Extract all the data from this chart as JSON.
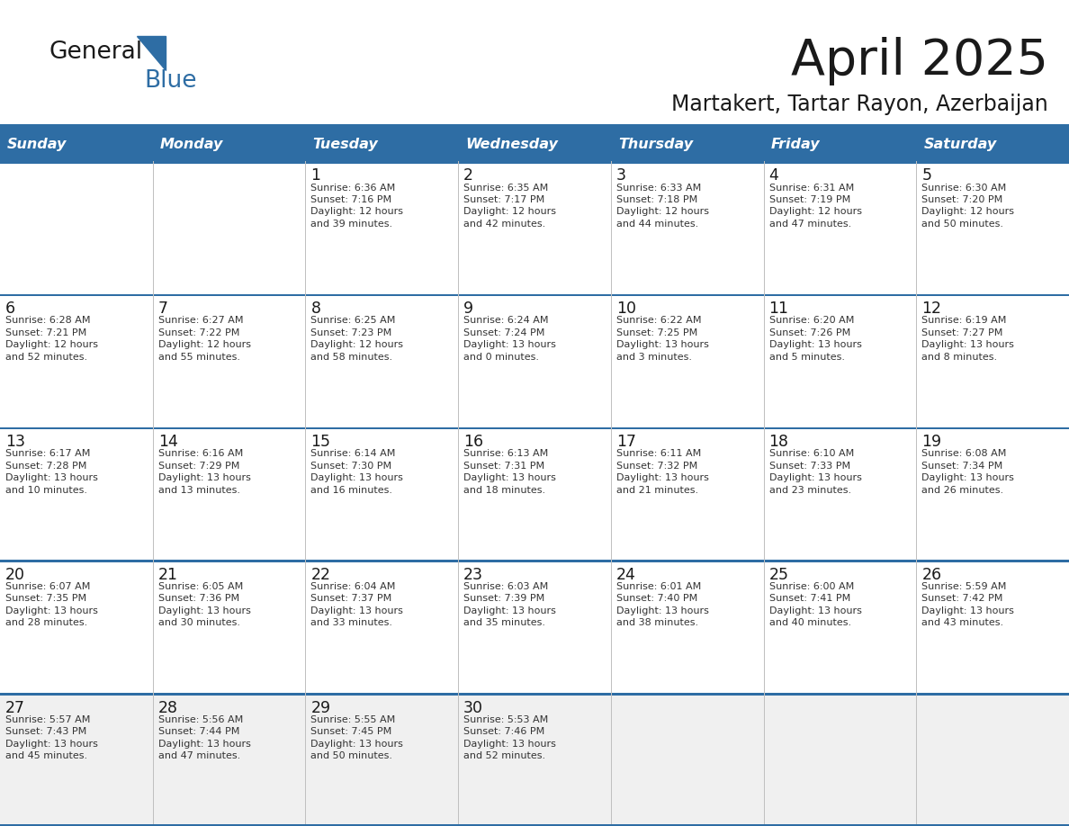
{
  "title": "April 2025",
  "subtitle": "Martakert, Tartar Rayon, Azerbaijan",
  "header_color": "#2E6DA4",
  "header_text_color": "#FFFFFF",
  "cell_bg_white": "#FFFFFF",
  "cell_bg_gray": "#F0F0F0",
  "row_border_color": "#2E6DA4",
  "col_border_color": "#C0C0C0",
  "title_color": "#1a1a1a",
  "subtitle_color": "#1a1a1a",
  "cell_text_color": "#333333",
  "day_num_color": "#1a1a1a",
  "logo_text1": "General",
  "logo_text2": "Blue",
  "logo_color1": "#1a1a1a",
  "logo_color2": "#2E6DA4",
  "days_of_week": [
    "Sunday",
    "Monday",
    "Tuesday",
    "Wednesday",
    "Thursday",
    "Friday",
    "Saturday"
  ],
  "calendar_data": [
    [
      {
        "day": null,
        "info": null
      },
      {
        "day": null,
        "info": null
      },
      {
        "day": 1,
        "info": "Sunrise: 6:36 AM\nSunset: 7:16 PM\nDaylight: 12 hours\nand 39 minutes."
      },
      {
        "day": 2,
        "info": "Sunrise: 6:35 AM\nSunset: 7:17 PM\nDaylight: 12 hours\nand 42 minutes."
      },
      {
        "day": 3,
        "info": "Sunrise: 6:33 AM\nSunset: 7:18 PM\nDaylight: 12 hours\nand 44 minutes."
      },
      {
        "day": 4,
        "info": "Sunrise: 6:31 AM\nSunset: 7:19 PM\nDaylight: 12 hours\nand 47 minutes."
      },
      {
        "day": 5,
        "info": "Sunrise: 6:30 AM\nSunset: 7:20 PM\nDaylight: 12 hours\nand 50 minutes."
      }
    ],
    [
      {
        "day": 6,
        "info": "Sunrise: 6:28 AM\nSunset: 7:21 PM\nDaylight: 12 hours\nand 52 minutes."
      },
      {
        "day": 7,
        "info": "Sunrise: 6:27 AM\nSunset: 7:22 PM\nDaylight: 12 hours\nand 55 minutes."
      },
      {
        "day": 8,
        "info": "Sunrise: 6:25 AM\nSunset: 7:23 PM\nDaylight: 12 hours\nand 58 minutes."
      },
      {
        "day": 9,
        "info": "Sunrise: 6:24 AM\nSunset: 7:24 PM\nDaylight: 13 hours\nand 0 minutes."
      },
      {
        "day": 10,
        "info": "Sunrise: 6:22 AM\nSunset: 7:25 PM\nDaylight: 13 hours\nand 3 minutes."
      },
      {
        "day": 11,
        "info": "Sunrise: 6:20 AM\nSunset: 7:26 PM\nDaylight: 13 hours\nand 5 minutes."
      },
      {
        "day": 12,
        "info": "Sunrise: 6:19 AM\nSunset: 7:27 PM\nDaylight: 13 hours\nand 8 minutes."
      }
    ],
    [
      {
        "day": 13,
        "info": "Sunrise: 6:17 AM\nSunset: 7:28 PM\nDaylight: 13 hours\nand 10 minutes."
      },
      {
        "day": 14,
        "info": "Sunrise: 6:16 AM\nSunset: 7:29 PM\nDaylight: 13 hours\nand 13 minutes."
      },
      {
        "day": 15,
        "info": "Sunrise: 6:14 AM\nSunset: 7:30 PM\nDaylight: 13 hours\nand 16 minutes."
      },
      {
        "day": 16,
        "info": "Sunrise: 6:13 AM\nSunset: 7:31 PM\nDaylight: 13 hours\nand 18 minutes."
      },
      {
        "day": 17,
        "info": "Sunrise: 6:11 AM\nSunset: 7:32 PM\nDaylight: 13 hours\nand 21 minutes."
      },
      {
        "day": 18,
        "info": "Sunrise: 6:10 AM\nSunset: 7:33 PM\nDaylight: 13 hours\nand 23 minutes."
      },
      {
        "day": 19,
        "info": "Sunrise: 6:08 AM\nSunset: 7:34 PM\nDaylight: 13 hours\nand 26 minutes."
      }
    ],
    [
      {
        "day": 20,
        "info": "Sunrise: 6:07 AM\nSunset: 7:35 PM\nDaylight: 13 hours\nand 28 minutes."
      },
      {
        "day": 21,
        "info": "Sunrise: 6:05 AM\nSunset: 7:36 PM\nDaylight: 13 hours\nand 30 minutes."
      },
      {
        "day": 22,
        "info": "Sunrise: 6:04 AM\nSunset: 7:37 PM\nDaylight: 13 hours\nand 33 minutes."
      },
      {
        "day": 23,
        "info": "Sunrise: 6:03 AM\nSunset: 7:39 PM\nDaylight: 13 hours\nand 35 minutes."
      },
      {
        "day": 24,
        "info": "Sunrise: 6:01 AM\nSunset: 7:40 PM\nDaylight: 13 hours\nand 38 minutes."
      },
      {
        "day": 25,
        "info": "Sunrise: 6:00 AM\nSunset: 7:41 PM\nDaylight: 13 hours\nand 40 minutes."
      },
      {
        "day": 26,
        "info": "Sunrise: 5:59 AM\nSunset: 7:42 PM\nDaylight: 13 hours\nand 43 minutes."
      }
    ],
    [
      {
        "day": 27,
        "info": "Sunrise: 5:57 AM\nSunset: 7:43 PM\nDaylight: 13 hours\nand 45 minutes."
      },
      {
        "day": 28,
        "info": "Sunrise: 5:56 AM\nSunset: 7:44 PM\nDaylight: 13 hours\nand 47 minutes."
      },
      {
        "day": 29,
        "info": "Sunrise: 5:55 AM\nSunset: 7:45 PM\nDaylight: 13 hours\nand 50 minutes."
      },
      {
        "day": 30,
        "info": "Sunrise: 5:53 AM\nSunset: 7:46 PM\nDaylight: 13 hours\nand 52 minutes."
      },
      {
        "day": null,
        "info": null
      },
      {
        "day": null,
        "info": null
      },
      {
        "day": null,
        "info": null
      }
    ]
  ]
}
